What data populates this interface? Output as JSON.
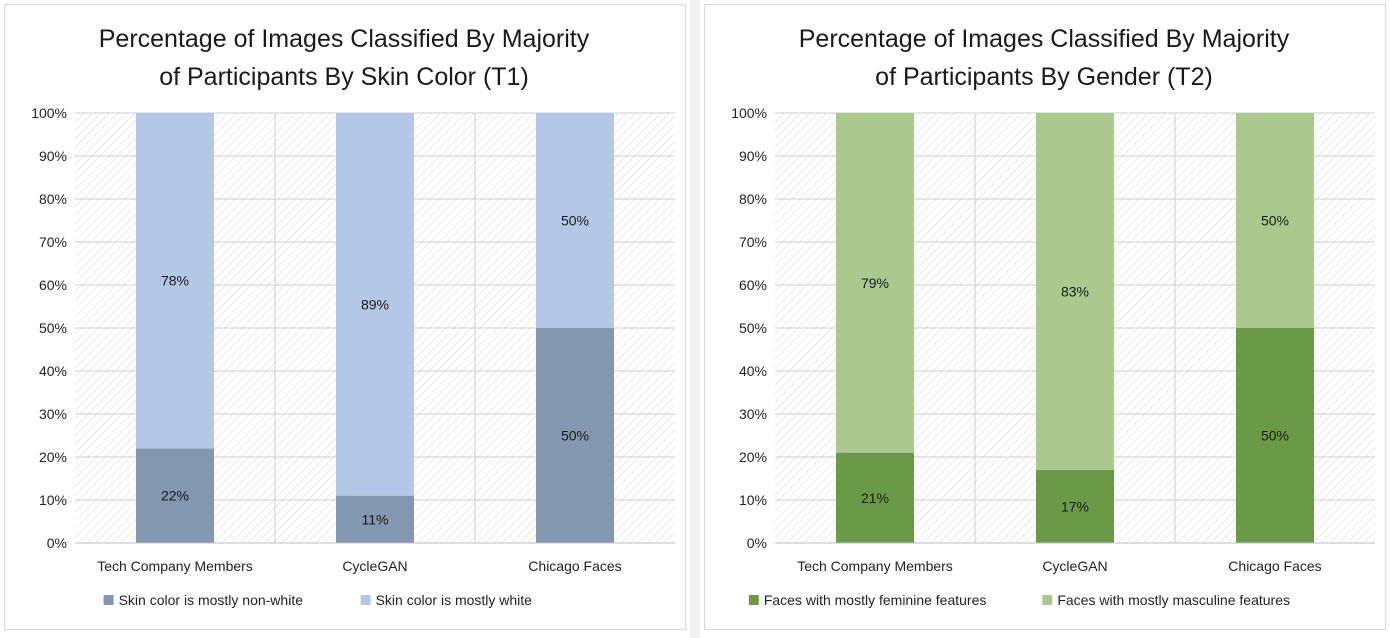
{
  "chart_data": [
    {
      "type": "bar",
      "stacked": true,
      "title_lines": [
        "Percentage of Images Classified By Majority",
        "of Participants By Skin Color (T1)"
      ],
      "categories": [
        "Tech Company Members",
        "CycleGAN",
        "Chicago Faces"
      ],
      "series": [
        {
          "name": "Skin color is mostly non-white",
          "values": [
            22,
            11,
            50
          ],
          "labels": [
            "22%",
            "11%",
            "50%"
          ],
          "color": "#8497b0"
        },
        {
          "name": "Skin color is mostly white",
          "values": [
            78,
            89,
            50
          ],
          "labels": [
            "78%",
            "89%",
            "50%"
          ],
          "color": "#b4c7e7"
        }
      ],
      "ylim": [
        0,
        100
      ],
      "yticks": [
        "0%",
        "10%",
        "20%",
        "30%",
        "40%",
        "50%",
        "60%",
        "70%",
        "80%",
        "90%",
        "100%"
      ],
      "grid": true,
      "legend": "bottom"
    },
    {
      "type": "bar",
      "stacked": true,
      "title_lines": [
        "Percentage of Images Classified By Majority",
        "of Participants By Gender (T2)"
      ],
      "categories": [
        "Tech Company Members",
        "CycleGAN",
        "Chicago Faces"
      ],
      "series": [
        {
          "name": "Faces with mostly feminine features",
          "values": [
            21,
            17,
            50
          ],
          "labels": [
            "21%",
            "17%",
            "50%"
          ],
          "color": "#6a9a46"
        },
        {
          "name": "Faces with mostly masculine features",
          "values": [
            79,
            83,
            50
          ],
          "labels": [
            "79%",
            "83%",
            "50%"
          ],
          "color": "#a9c98f"
        }
      ],
      "ylim": [
        0,
        100
      ],
      "yticks": [
        "0%",
        "10%",
        "20%",
        "30%",
        "40%",
        "50%",
        "60%",
        "70%",
        "80%",
        "90%",
        "100%"
      ],
      "grid": true,
      "legend": "bottom"
    }
  ]
}
